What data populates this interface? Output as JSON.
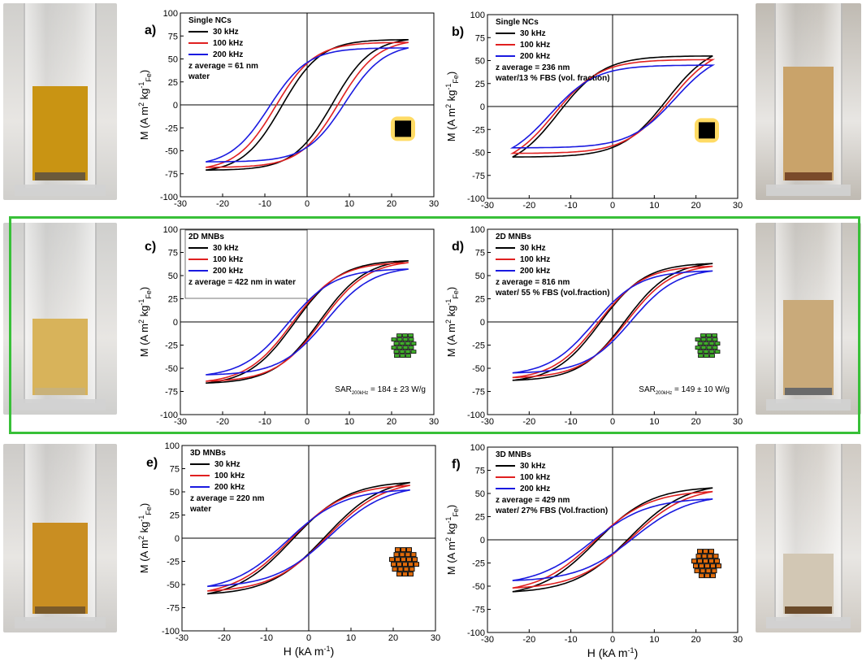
{
  "colors": {
    "series_30": "#000000",
    "series_100": "#e02020",
    "series_200": "#1a1ae0",
    "frame_highlight": "#38c038",
    "nc_icon_glow": "#ffd54a",
    "mnb2d_fill": "#3fae2a",
    "mnb3d_fill": "#e06a0a"
  },
  "photos": [
    {
      "name": "vial-a",
      "liquid": "#c99413",
      "tone": "#d0cfcc",
      "fill_level": 0.6,
      "sediment": "#6b5a3a"
    },
    {
      "name": "vial-b",
      "liquid": "#c9a36a",
      "tone": "#bfbab2",
      "fill_level": 0.72,
      "sediment": "#7a4a2a"
    },
    {
      "name": "vial-c",
      "liquid": "#d8b35a",
      "tone": "#cfcfcd",
      "fill_level": 0.5,
      "sediment": "#c9b27a"
    },
    {
      "name": "vial-d",
      "liquid": "#c9aa7a",
      "tone": "#c7c3bc",
      "fill_level": 0.62,
      "sediment": "#6a6a6a"
    },
    {
      "name": "vial-e",
      "liquid": "#c98e22",
      "tone": "#cdcbc8",
      "fill_level": 0.6,
      "sediment": "#7a5a2a"
    },
    {
      "name": "vial-f",
      "liquid": "#d2c7b4",
      "tone": "#cfcac3",
      "fill_level": 0.4,
      "sediment": "#6a4a2a"
    }
  ],
  "legend_labels": [
    "30 kHz",
    "100 kHz",
    "200 kHz"
  ],
  "axis": {
    "ylabel_main": "M (A m",
    "ylabel_sup": "2",
    "ylabel_mid": " kg",
    "ylabel_sup2": "-1",
    "ylabel_sub": "Fe",
    "ylabel_end": ")",
    "xlabel_main": "H (kA m",
    "xlabel_sup": "-1",
    "xlabel_end": ")"
  },
  "chart_data": [
    {
      "type": "line",
      "panel": "a)",
      "title": "Single NCs",
      "annotations": [
        "z average = 61 nm",
        "water"
      ],
      "sar": null,
      "icon": "nanocube-icon",
      "xlim": [
        -30,
        30
      ],
      "ylim": [
        -100,
        100
      ],
      "xticks": [
        -30,
        -20,
        -10,
        0,
        10,
        20,
        30
      ],
      "yticks": [
        -100,
        -75,
        -50,
        -25,
        0,
        25,
        50,
        75,
        100
      ],
      "series": [
        {
          "name": "30 kHz",
          "color": "#000000",
          "Hmax": 24,
          "Mmax": 71,
          "Mr": 47,
          "Hc": 6,
          "n": 2.6
        },
        {
          "name": "100 kHz",
          "color": "#e02020",
          "Hmax": 24,
          "Mmax": 68,
          "Mr": 48,
          "Hc": 7.5,
          "n": 2.6
        },
        {
          "name": "200 kHz",
          "color": "#1a1ae0",
          "Hmax": 24,
          "Mmax": 62,
          "Mr": 50,
          "Hc": 9,
          "n": 2.6
        }
      ]
    },
    {
      "type": "line",
      "panel": "b)",
      "title": "Single NCs",
      "annotations": [
        "z average = 236 nm",
        "water/13 % FBS (vol. fraction)"
      ],
      "sar": null,
      "icon": "nanocube-icon",
      "xlim": [
        -30,
        30
      ],
      "ylim": [
        -100,
        100
      ],
      "xticks": [
        -30,
        -20,
        -10,
        0,
        10,
        20,
        30
      ],
      "yticks": [
        -100,
        -75,
        -50,
        -25,
        0,
        25,
        50,
        75,
        100
      ],
      "series": [
        {
          "name": "30 kHz",
          "color": "#000000",
          "Hmax": 24,
          "Mmax": 55,
          "Mr": 27,
          "Hc": 13,
          "n": 2.2
        },
        {
          "name": "100 kHz",
          "color": "#e02020",
          "Hmax": 24,
          "Mmax": 51,
          "Mr": 27,
          "Hc": 14,
          "n": 2.2
        },
        {
          "name": "200 kHz",
          "color": "#1a1ae0",
          "Hmax": 24,
          "Mmax": 45,
          "Mr": 27,
          "Hc": 15,
          "n": 2.2
        }
      ]
    },
    {
      "type": "line",
      "panel": "c)",
      "title": "2D MNBs",
      "annotations": [
        "z average = 422 nm in water"
      ],
      "sar": {
        "prefix": "SAR",
        "sub": "200kHz",
        "value": " = 184 ± 23 W/g"
      },
      "icon": "mnb-2d-icon",
      "legend_boxed": true,
      "xlim": [
        -30,
        30
      ],
      "ylim": [
        -100,
        100
      ],
      "xticks": [
        -30,
        -20,
        -10,
        0,
        10,
        20,
        30
      ],
      "yticks": [
        -100,
        -75,
        -50,
        -25,
        0,
        25,
        50,
        75,
        100
      ],
      "series": [
        {
          "name": "30 kHz",
          "color": "#000000",
          "Hmax": 24,
          "Mmax": 66,
          "Mr": 17,
          "Hc": 3,
          "n": 2.2
        },
        {
          "name": "100 kHz",
          "color": "#e02020",
          "Hmax": 24,
          "Mmax": 64,
          "Mr": 19,
          "Hc": 3.5,
          "n": 2.2
        },
        {
          "name": "200 kHz",
          "color": "#1a1ae0",
          "Hmax": 24,
          "Mmax": 57,
          "Mr": 23,
          "Hc": 4.5,
          "n": 2.2
        }
      ]
    },
    {
      "type": "line",
      "panel": "d)",
      "title": "2D MNBs",
      "annotations": [
        "z average = 816 nm",
        "water/ 55 % FBS (vol.fraction)"
      ],
      "sar": {
        "prefix": "SAR",
        "sub": "200kHz",
        "value": " = 149 ± 10 W/g"
      },
      "icon": "mnb-2d-icon",
      "xlim": [
        -30,
        30
      ],
      "ylim": [
        -100,
        100
      ],
      "xticks": [
        -30,
        -20,
        -10,
        0,
        10,
        20,
        30
      ],
      "yticks": [
        -100,
        -75,
        -50,
        -25,
        0,
        25,
        50,
        75,
        100
      ],
      "series": [
        {
          "name": "30 kHz",
          "color": "#000000",
          "Hmax": 24,
          "Mmax": 63,
          "Mr": 16,
          "Hc": 3,
          "n": 2.2
        },
        {
          "name": "100 kHz",
          "color": "#e02020",
          "Hmax": 24,
          "Mmax": 60,
          "Mr": 18,
          "Hc": 3.5,
          "n": 2.2
        },
        {
          "name": "200 kHz",
          "color": "#1a1ae0",
          "Hmax": 24,
          "Mmax": 55,
          "Mr": 21,
          "Hc": 4.5,
          "n": 2.2
        }
      ]
    },
    {
      "type": "line",
      "panel": "e)",
      "title": "3D MNBs",
      "annotations": [
        "z average = 220 nm",
        "water"
      ],
      "sar": null,
      "icon": "mnb-3d-icon",
      "xlim": [
        -30,
        30
      ],
      "ylim": [
        -100,
        100
      ],
      "xticks": [
        -30,
        -20,
        -10,
        0,
        10,
        20,
        30
      ],
      "yticks": [
        -100,
        -75,
        -50,
        -25,
        0,
        25,
        50,
        75,
        100
      ],
      "series": [
        {
          "name": "30 kHz",
          "color": "#000000",
          "Hmax": 24,
          "Mmax": 60,
          "Mr": 9,
          "Hc": 4,
          "n": 1.8
        },
        {
          "name": "100 kHz",
          "color": "#e02020",
          "Hmax": 24,
          "Mmax": 57,
          "Mr": 10,
          "Hc": 4.5,
          "n": 1.8
        },
        {
          "name": "200 kHz",
          "color": "#1a1ae0",
          "Hmax": 24,
          "Mmax": 52,
          "Mr": 11,
          "Hc": 5,
          "n": 1.8
        }
      ]
    },
    {
      "type": "line",
      "panel": "f)",
      "title": "3D MNBs",
      "annotations": [
        "z average = 429 nm",
        "water/ 27% FBS (Vol.fraction)"
      ],
      "sar": null,
      "icon": "mnb-3d-icon",
      "xlim": [
        -30,
        30
      ],
      "ylim": [
        -100,
        100
      ],
      "xticks": [
        -30,
        -20,
        -10,
        0,
        10,
        20,
        30
      ],
      "yticks": [
        -100,
        -75,
        -50,
        -25,
        0,
        25,
        50,
        75,
        100
      ],
      "series": [
        {
          "name": "30 kHz",
          "color": "#000000",
          "Hmax": 24,
          "Mmax": 56,
          "Mr": 10,
          "Hc": 4,
          "n": 1.8
        },
        {
          "name": "100 kHz",
          "color": "#e02020",
          "Hmax": 24,
          "Mmax": 52,
          "Mr": 11,
          "Hc": 4.5,
          "n": 1.8
        },
        {
          "name": "200 kHz",
          "color": "#1a1ae0",
          "Hmax": 24,
          "Mmax": 44,
          "Mr": 12,
          "Hc": 5,
          "n": 1.8
        }
      ]
    }
  ]
}
